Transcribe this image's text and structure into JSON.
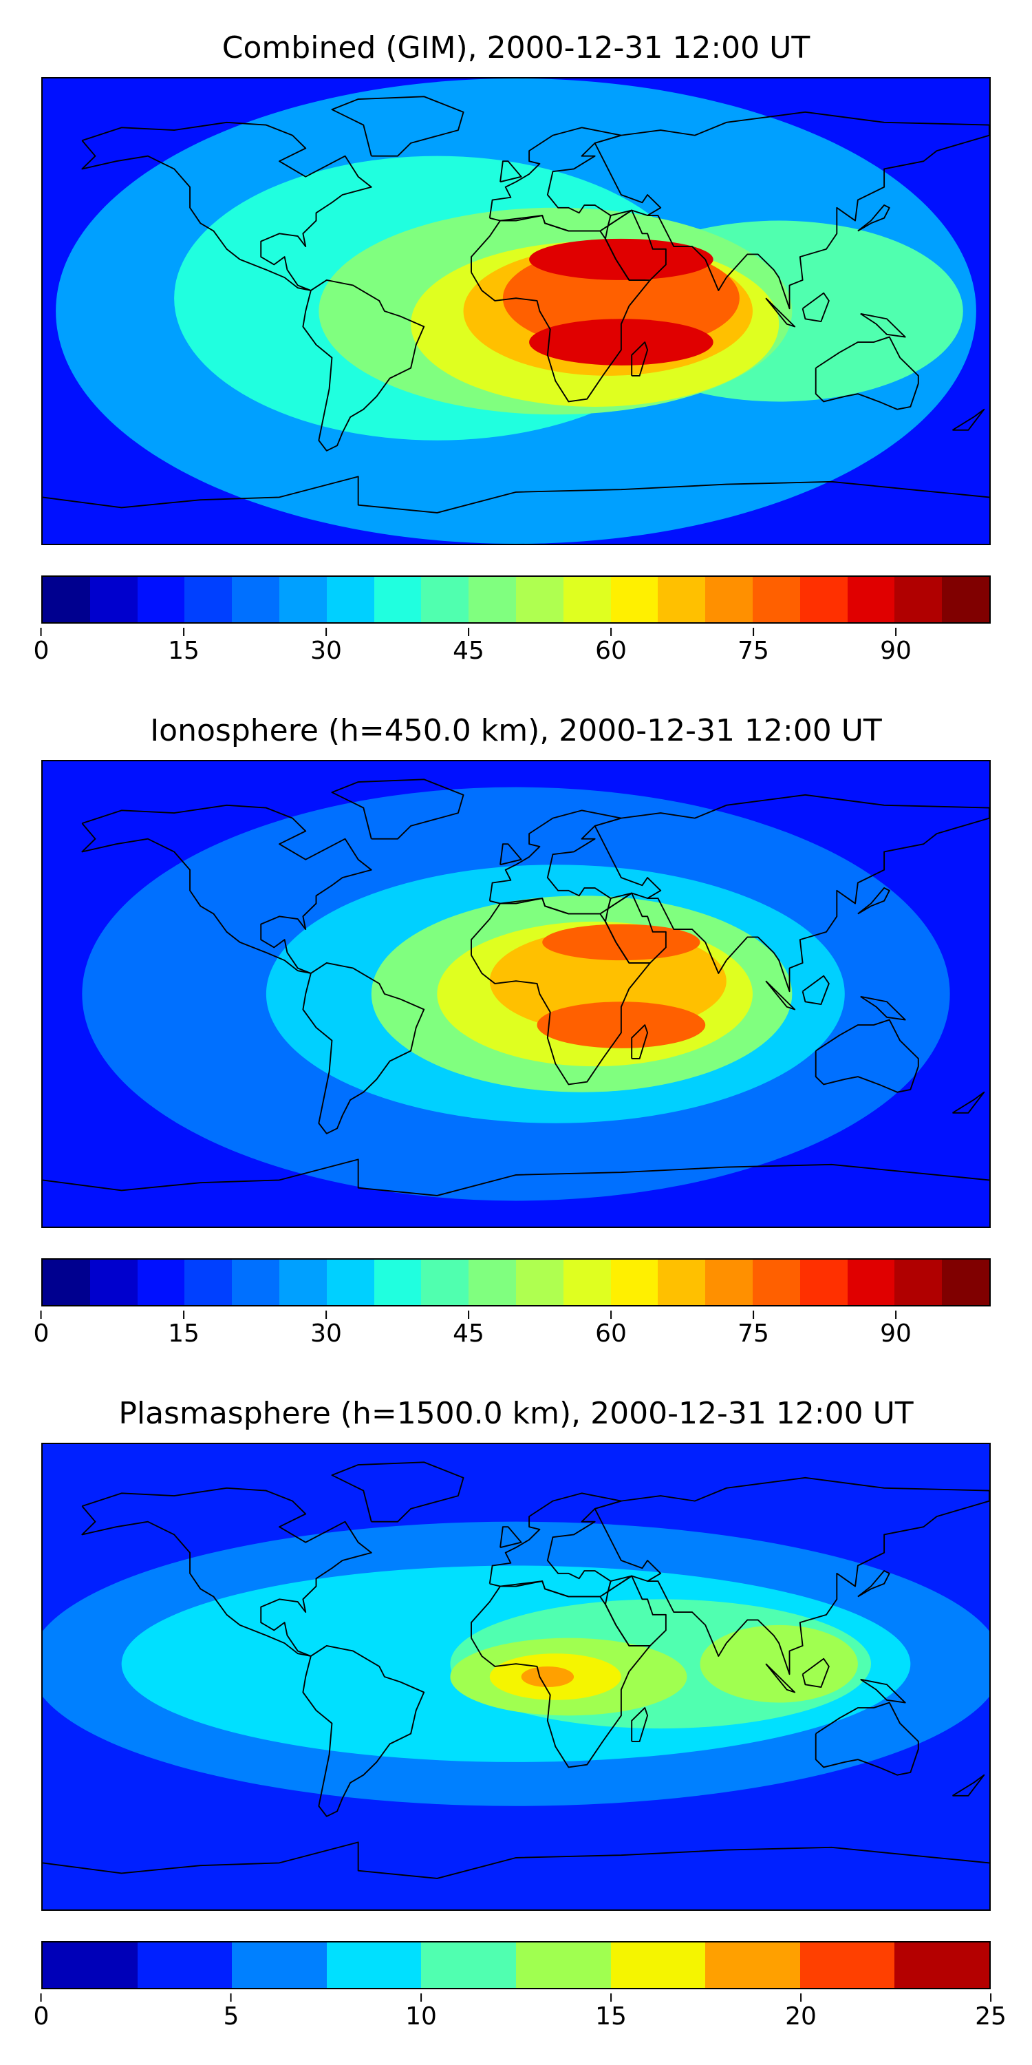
{
  "chart_data": [
    {
      "type": "heatmap",
      "title": "Combined (GIM), 2000-12-31 12:00 UT",
      "colorbar": {
        "range": [
          0,
          100
        ],
        "levels": [
          0,
          5,
          10,
          15,
          20,
          25,
          30,
          35,
          40,
          45,
          50,
          55,
          60,
          65,
          70,
          75,
          80,
          85,
          90,
          95,
          100
        ],
        "ticks": [
          "0",
          "15",
          "30",
          "45",
          "60",
          "75",
          "90"
        ],
        "tick_values": [
          0,
          15,
          30,
          45,
          60,
          75,
          90
        ],
        "colors": [
          "#00008f",
          "#0000cd",
          "#0010ff",
          "#0040ff",
          "#0070ff",
          "#00a0ff",
          "#00d0ff",
          "#20ffdf",
          "#50ffaf",
          "#80ff7f",
          "#afff50",
          "#dfff20",
          "#fff000",
          "#ffc000",
          "#ff9000",
          "#ff6000",
          "#ff3000",
          "#e00000",
          "#b00000",
          "#800000"
        ]
      },
      "blobs": [
        {
          "lon": 0,
          "lat": 0,
          "rx": 175,
          "ry": 90,
          "level": 5
        },
        {
          "lon": -30,
          "lat": 5,
          "rx": 100,
          "ry": 55,
          "level": 7
        },
        {
          "lon": 100,
          "lat": 0,
          "rx": 70,
          "ry": 35,
          "level": 8
        },
        {
          "lon": 15,
          "lat": 0,
          "rx": 90,
          "ry": 40,
          "level": 9
        },
        {
          "lon": 30,
          "lat": -5,
          "rx": 70,
          "ry": 32,
          "level": 11
        },
        {
          "lon": 35,
          "lat": 0,
          "rx": 55,
          "ry": 25,
          "level": 13
        },
        {
          "lon": 40,
          "lat": 5,
          "rx": 45,
          "ry": 20,
          "level": 15
        },
        {
          "lon": 40,
          "lat": 20,
          "rx": 35,
          "ry": 8,
          "level": 17
        },
        {
          "lon": 40,
          "lat": -12,
          "rx": 35,
          "ry": 9,
          "level": 17
        }
      ]
    },
    {
      "type": "heatmap",
      "title": "Ionosphere  (h=450.0 km), 2000-12-31 12:00 UT",
      "colorbar": {
        "range": [
          0,
          100
        ],
        "levels": [
          0,
          5,
          10,
          15,
          20,
          25,
          30,
          35,
          40,
          45,
          50,
          55,
          60,
          65,
          70,
          75,
          80,
          85,
          90,
          95,
          100
        ],
        "ticks": [
          "0",
          "15",
          "30",
          "45",
          "60",
          "75",
          "90"
        ],
        "tick_values": [
          0,
          15,
          30,
          45,
          60,
          75,
          90
        ],
        "colors": [
          "#00008f",
          "#0000cd",
          "#0010ff",
          "#0040ff",
          "#0070ff",
          "#00a0ff",
          "#00d0ff",
          "#20ffdf",
          "#50ffaf",
          "#80ff7f",
          "#afff50",
          "#dfff20",
          "#fff000",
          "#ffc000",
          "#ff9000",
          "#ff6000",
          "#ff3000",
          "#e00000",
          "#b00000",
          "#800000"
        ]
      },
      "blobs": [
        {
          "lon": 0,
          "lat": 0,
          "rx": 165,
          "ry": 80,
          "level": 4
        },
        {
          "lon": 15,
          "lat": 0,
          "rx": 110,
          "ry": 50,
          "level": 6
        },
        {
          "lon": 25,
          "lat": 0,
          "rx": 80,
          "ry": 38,
          "level": 9
        },
        {
          "lon": 30,
          "lat": 0,
          "rx": 60,
          "ry": 28,
          "level": 11
        },
        {
          "lon": 35,
          "lat": 5,
          "rx": 45,
          "ry": 20,
          "level": 13
        },
        {
          "lon": 40,
          "lat": 20,
          "rx": 30,
          "ry": 7,
          "level": 15
        },
        {
          "lon": 40,
          "lat": -12,
          "rx": 32,
          "ry": 9,
          "level": 15
        }
      ]
    },
    {
      "type": "heatmap",
      "title": "Plasmasphere (h=1500.0 km), 2000-12-31 12:00 UT",
      "colorbar": {
        "range": [
          0,
          25
        ],
        "levels": [
          0,
          2.5,
          5,
          7.5,
          10,
          12.5,
          15,
          17.5,
          20,
          22.5,
          25
        ],
        "ticks": [
          "0",
          "5",
          "10",
          "15",
          "20",
          "25"
        ],
        "tick_values": [
          0,
          5,
          10,
          15,
          20,
          25
        ],
        "colors": [
          "#0000b8",
          "#0020ff",
          "#0080ff",
          "#00e0ff",
          "#50ffb0",
          "#a0ff50",
          "#f5f500",
          "#ffa000",
          "#ff4000",
          "#b40000"
        ]
      },
      "blobs": [
        {
          "lon": 0,
          "lat": 5,
          "rx": 185,
          "ry": 55,
          "level": 2
        },
        {
          "lon": 0,
          "lat": 5,
          "rx": 150,
          "ry": 38,
          "level": 3
        },
        {
          "lon": 55,
          "lat": 5,
          "rx": 80,
          "ry": 25,
          "level": 4
        },
        {
          "lon": 20,
          "lat": 0,
          "rx": 45,
          "ry": 15,
          "level": 5
        },
        {
          "lon": 100,
          "lat": 5,
          "rx": 30,
          "ry": 15,
          "level": 5
        },
        {
          "lon": 15,
          "lat": 0,
          "rx": 25,
          "ry": 9,
          "level": 6
        },
        {
          "lon": 12,
          "lat": 0,
          "rx": 10,
          "ry": 4,
          "level": 7
        }
      ]
    }
  ]
}
